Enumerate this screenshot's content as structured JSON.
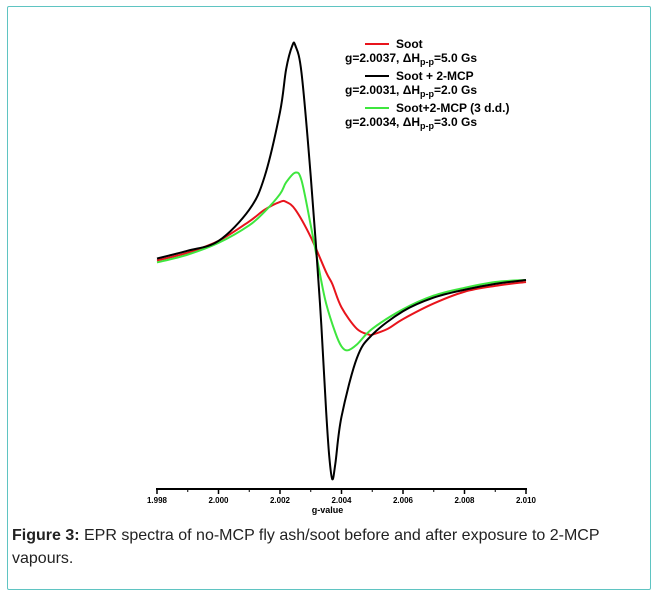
{
  "chart_data": {
    "type": "line",
    "title": "",
    "xlabel": "g-value",
    "ylabel": "",
    "xlim": [
      1.998,
      2.01
    ],
    "ylim": [
      -1.15,
      1.2
    ],
    "x_tick_labels": [
      "1.998",
      "2.000",
      "2.002",
      "2.004",
      "2.006",
      "2.008",
      "2.010"
    ],
    "grid": false,
    "legend_position": "top-right",
    "series": [
      {
        "name": "Soot",
        "color": "#e8141c",
        "g": 2.0037,
        "delta_h_pp": "5.0 Gs",
        "stats_line": "g=2.0037, ΔHp-p=5.0 Gs",
        "x": [
          1.998,
          1.999,
          2.0,
          2.001,
          2.0015,
          2.002,
          2.0022,
          2.0025,
          2.003,
          2.0035,
          2.0037,
          2.004,
          2.0045,
          2.0049,
          2.005,
          2.0055,
          2.006,
          2.007,
          2.008,
          2.009,
          2.01
        ],
        "y": [
          0.02,
          0.06,
          0.12,
          0.22,
          0.28,
          0.32,
          0.32,
          0.28,
          0.14,
          -0.04,
          -0.1,
          -0.22,
          -0.33,
          -0.36,
          -0.36,
          -0.33,
          -0.28,
          -0.2,
          -0.14,
          -0.11,
          -0.09
        ]
      },
      {
        "name": "Soot + 2-MCP",
        "color": "#000000",
        "g": 2.0031,
        "delta_h_pp": "2.0 Gs",
        "stats_line": "g=2.0031, ΔHp-p=2.0 Gs",
        "x": [
          1.998,
          1.999,
          2.0,
          2.001,
          2.0015,
          2.002,
          2.0022,
          2.0024,
          2.0025,
          2.0027,
          2.003,
          2.0033,
          2.0035,
          2.0036,
          2.0037,
          2.0038,
          2.004,
          2.0045,
          2.005,
          2.006,
          2.007,
          2.008,
          2.009,
          2.01
        ],
        "y": [
          0.03,
          0.07,
          0.12,
          0.28,
          0.45,
          0.78,
          1.0,
          1.12,
          1.12,
          0.98,
          0.45,
          -0.2,
          -0.75,
          -0.98,
          -1.1,
          -1.02,
          -0.78,
          -0.48,
          -0.36,
          -0.24,
          -0.17,
          -0.13,
          -0.1,
          -0.08
        ]
      },
      {
        "name": "Soot+2-MCP (3 d.d.)",
        "color": "#3ee63e",
        "g": 2.0034,
        "delta_h_pp": "3.0 Gs",
        "stats_line": "g=2.0034, ΔHp-p=3.0 Gs",
        "x": [
          1.998,
          1.999,
          2.0,
          2.001,
          2.0015,
          2.002,
          2.0022,
          2.0025,
          2.0027,
          2.003,
          2.0033,
          2.0035,
          2.0038,
          2.004,
          2.0042,
          2.0045,
          2.005,
          2.006,
          2.007,
          2.008,
          2.009,
          2.01
        ],
        "y": [
          0.01,
          0.05,
          0.11,
          0.2,
          0.27,
          0.36,
          0.42,
          0.47,
          0.43,
          0.2,
          -0.05,
          -0.2,
          -0.35,
          -0.42,
          -0.44,
          -0.41,
          -0.33,
          -0.23,
          -0.16,
          -0.12,
          -0.09,
          -0.08
        ]
      }
    ]
  },
  "legend": {
    "delta_symbol": "ΔH",
    "subscript": "p-p",
    "entries": [
      {
        "label": "Soot",
        "g_text": "g=2.0037, ",
        "width_text": "=5.0 Gs"
      },
      {
        "label": "Soot + 2-MCP",
        "g_text": "g=2.0031, ",
        "width_text": "=2.0 Gs"
      },
      {
        "label": "Soot+2-MCP (3 d.d.)",
        "g_text": "g=2.0034, ",
        "width_text": "=3.0 Gs"
      }
    ]
  },
  "caption": {
    "label": "Figure 3:",
    "text": " EPR spectra of no-MCP fly ash/soot before and after exposure to 2-MCP vapours."
  },
  "colors": {
    "frame_border": "#5fc4c2"
  }
}
